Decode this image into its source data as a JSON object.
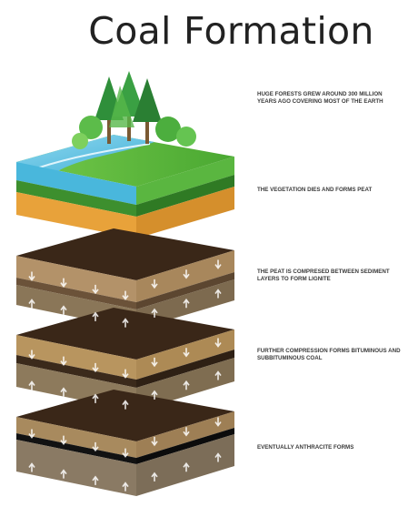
{
  "title": "Coal Formation",
  "captions": [
    "Huge forests grew around 300 million years ago covering most of the earth",
    "The vegetation dies and forms peat",
    "The peat is compresed between sediment layers to form lignite",
    "Further compression forms bituminous and subbituminous coal",
    "Eventually anthracite forms"
  ],
  "icons": {
    "forest": "tree-icon",
    "down_arrow": "arrow-down-icon",
    "up_arrow": "arrow-up-icon"
  },
  "colors": {
    "water": "#5bc0e0",
    "grass": "#5dbb3f",
    "peat": "#e6a23a",
    "sediment": "#a48a63",
    "dark_soil": "#3e2a1c",
    "coal": "#1a1a1a"
  }
}
